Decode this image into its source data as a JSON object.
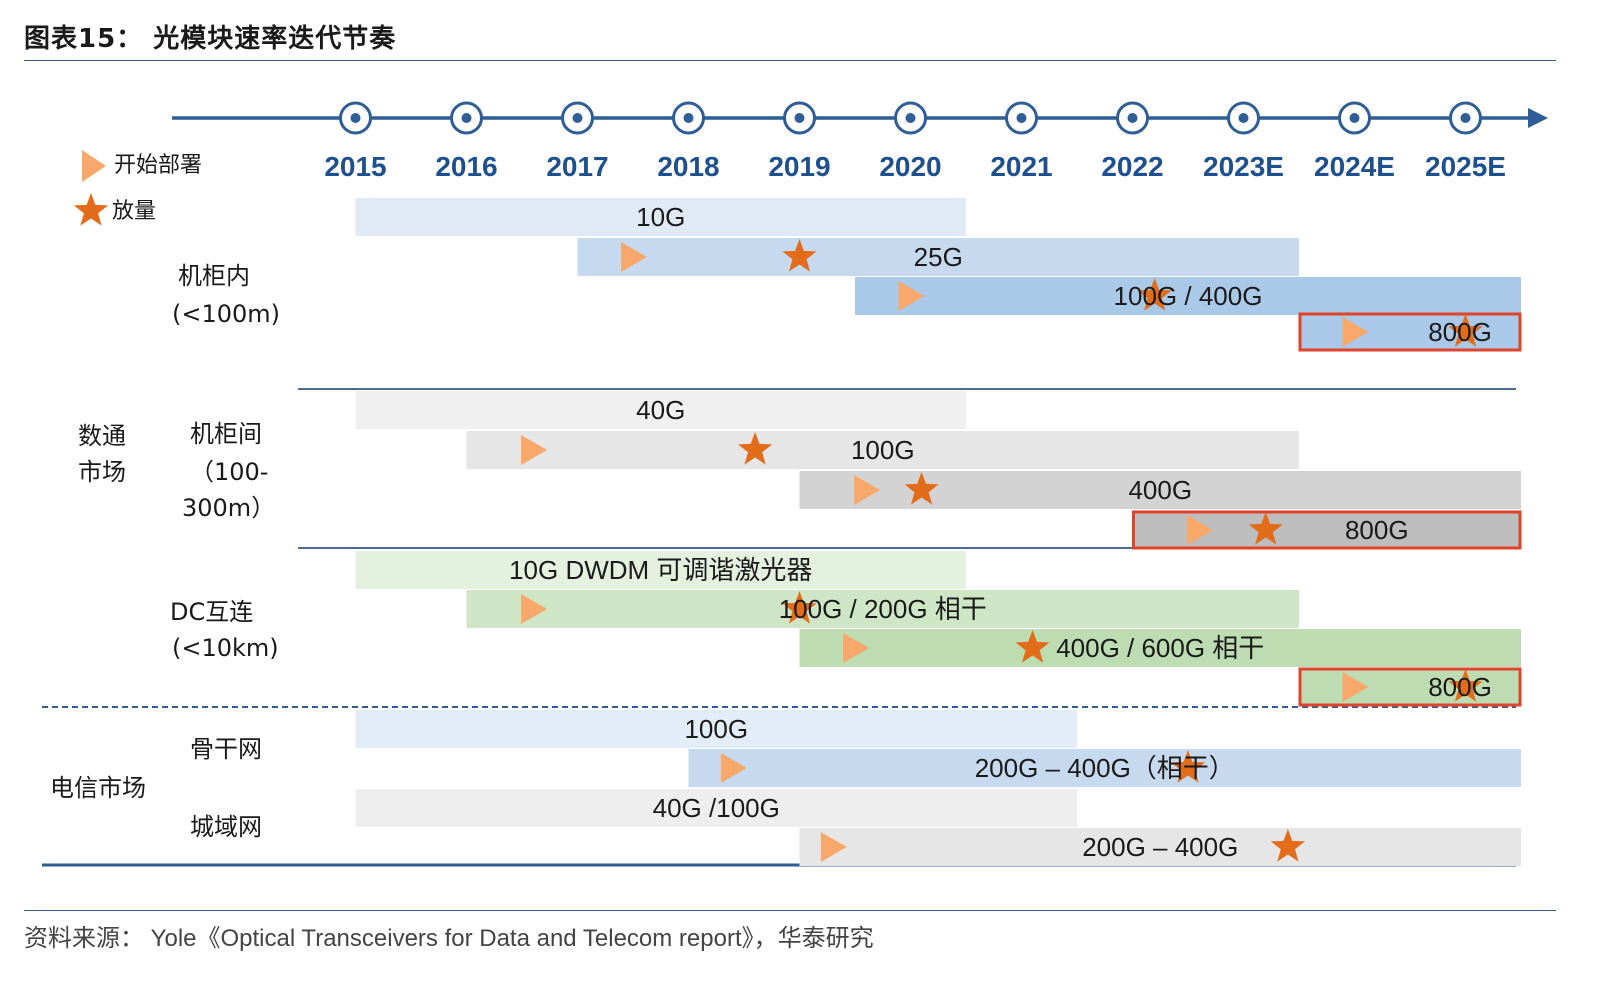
{
  "title": "图表15： 光模块速率迭代节奏",
  "source": "资料来源： Yole《Optical Transceivers for Data and Telecom report》，华泰研究",
  "legend": {
    "start": "开始部署",
    "volume": "放量"
  },
  "years": [
    "2015",
    "2016",
    "2017",
    "2018",
    "2019",
    "2020",
    "2021",
    "2022",
    "2023E",
    "2024E",
    "2025E"
  ],
  "colors": {
    "marker": "#f7a86a",
    "star": "#e36c1a",
    "highlight": "#e0432b",
    "axis": "#2f5d96"
  },
  "markets": {
    "datacom": "数通\n市场",
    "telecom": "电信市场"
  },
  "segments": [
    {
      "label": "机柜内\n(<100m)"
    },
    {
      "label": "机柜间\n（100-\n300m）"
    },
    {
      "label": "DC互连\n(<10km)"
    },
    {
      "label": "骨干网"
    },
    {
      "label": "城域网"
    }
  ],
  "bars": [
    {
      "text": "10G",
      "start": 2015,
      "end": 2020.5,
      "color": "#dfeaf6"
    },
    {
      "text": "25G",
      "start": 2017,
      "end": 2023.5,
      "color": "#c6d9ef",
      "tri": 2017.5,
      "star": 2019
    },
    {
      "text": "100G / 400G",
      "start": 2019.5,
      "end": 2025.5,
      "color": "#aac8e8",
      "tri": 2020,
      "star": 2022.2
    },
    {
      "text": "800G",
      "start": 2023.5,
      "end": 2025.5,
      "color": "#aac8e8",
      "tri": 2024,
      "star": 2025,
      "hl": true
    },
    {
      "text": "40G",
      "start": 2015,
      "end": 2020.5,
      "color": "#f0f0f0"
    },
    {
      "text": "100G",
      "start": 2016,
      "end": 2023.5,
      "color": "#e6e6e6",
      "tri": 2016.6,
      "star": 2018.6
    },
    {
      "text": "400G",
      "start": 2019,
      "end": 2025.5,
      "color": "#d3d3d3",
      "tri": 2019.6,
      "star": 2020.1
    },
    {
      "text": "800G",
      "start": 2022,
      "end": 2025.5,
      "color": "#bdbdbd",
      "tri": 2022.6,
      "star": 2023.2,
      "hl": true
    },
    {
      "text": "10G DWDM 可调谐激光器",
      "start": 2015,
      "end": 2020.5,
      "color": "#e4f1df"
    },
    {
      "text": "100G / 200G  相干",
      "start": 2016,
      "end": 2023.5,
      "color": "#cfe6c6",
      "tri": 2016.6,
      "star": 2019
    },
    {
      "text": "400G / 600G  相干",
      "start": 2019,
      "end": 2025.5,
      "color": "#bddcb1",
      "tri": 2019.5,
      "star": 2021.1
    },
    {
      "text": "800G",
      "start": 2023.5,
      "end": 2025.5,
      "color": "#bddcb1",
      "tri": 2024,
      "star": 2025,
      "hl": true
    },
    {
      "text": "100G",
      "start": 2015,
      "end": 2021.5,
      "color": "#e3edf8"
    },
    {
      "text": "200G – 400G（相干）",
      "start": 2018,
      "end": 2025.5,
      "color": "#c6d9ef",
      "tri": 2018.4,
      "star": 2022.5
    },
    {
      "text": "40G /100G",
      "start": 2015,
      "end": 2021.5,
      "color": "#eeeeee"
    },
    {
      "text": "200G – 400G",
      "start": 2019,
      "end": 2025.5,
      "color": "#e6e6e6",
      "tri": 2019.3,
      "star": 2023.4
    }
  ]
}
